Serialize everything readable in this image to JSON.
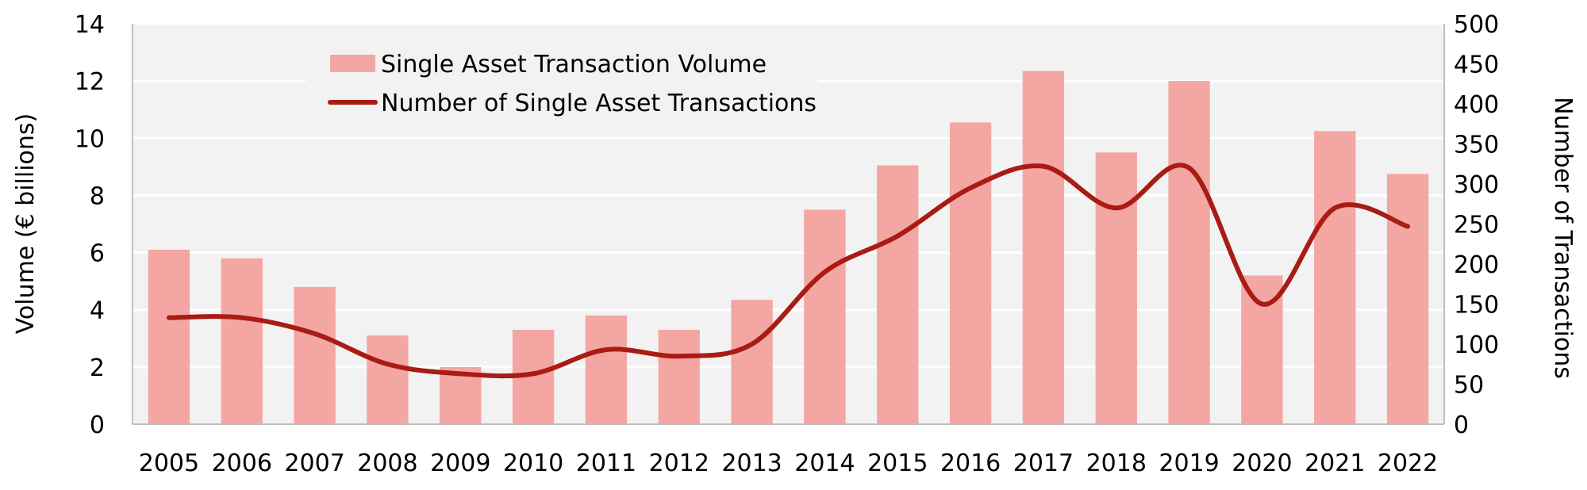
{
  "chart_data": {
    "type": "bar+line",
    "categories": [
      "2005",
      "2006",
      "2007",
      "2008",
      "2009",
      "2010",
      "2011",
      "2012",
      "2013",
      "2014",
      "2015",
      "2016",
      "2017",
      "2018",
      "2019",
      "2020",
      "2021",
      "2022"
    ],
    "series": [
      {
        "name": "Single Asset Transaction Volume",
        "type": "bar",
        "axis": "left",
        "color": "#f4a6a3",
        "values": [
          6.1,
          5.8,
          4.8,
          3.1,
          2.0,
          3.3,
          3.8,
          3.3,
          4.35,
          7.5,
          9.05,
          10.55,
          12.35,
          9.5,
          12.0,
          5.2,
          10.25,
          8.75
        ]
      },
      {
        "name": "Number of Single Asset Transactions",
        "type": "line",
        "axis": "right",
        "color": "#a81c14",
        "values": [
          133,
          133,
          113,
          75,
          63,
          63,
          93,
          85,
          100,
          190,
          235,
          295,
          322,
          270,
          320,
          150,
          270,
          247
        ]
      }
    ],
    "ylabel": "Volume (€ billions)",
    "y2label": "Number of Transactions",
    "ylim": [
      0,
      14
    ],
    "y_ticks": [
      "0",
      "2",
      "4",
      "6",
      "8",
      "10",
      "12",
      "14"
    ],
    "y2lim": [
      0,
      500
    ],
    "y2_ticks": [
      "0",
      "50",
      "100",
      "150",
      "200",
      "250",
      "300",
      "350",
      "400",
      "450",
      "500"
    ],
    "grid": true,
    "legend_position": "top-left",
    "plot_background": "#f2f2f2"
  }
}
